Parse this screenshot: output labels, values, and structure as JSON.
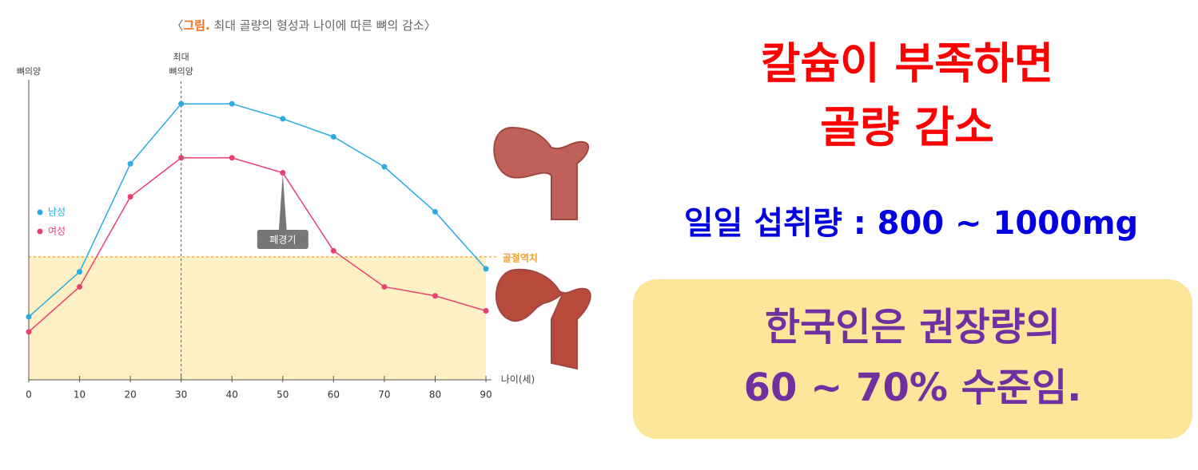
{
  "chart_data": {
    "type": "line",
    "title_parts": [
      "〈",
      "그림.",
      " 최대 골량의 형성과 나이에 따른 뼈의 감소〉"
    ],
    "y_label": "뼈의양",
    "x_label": "나이(세)",
    "x": [
      0,
      10,
      20,
      30,
      40,
      50,
      60,
      70,
      80,
      90
    ],
    "xlim": [
      0,
      92
    ],
    "xticks": [
      0,
      10,
      20,
      30,
      40,
      50,
      60,
      70,
      80,
      90
    ],
    "ylim": [
      0,
      100
    ],
    "series": [
      {
        "name": "남성",
        "color": "#29abe2",
        "values": [
          21,
          36,
          72,
          92,
          92,
          87,
          81,
          71,
          56,
          37
        ]
      },
      {
        "name": "여성",
        "color": "#e8416f",
        "values": [
          16,
          31,
          61,
          74,
          74,
          69,
          43,
          31,
          28,
          23
        ]
      }
    ],
    "legend": "left",
    "annotations": {
      "peak": {
        "x": 30,
        "lines": [
          "최대",
          "뼈의양"
        ]
      },
      "menopause": {
        "x": 50,
        "label": "폐경기"
      },
      "threshold": {
        "value": 41,
        "label": "골절역치",
        "color": "#f0a030"
      }
    }
  },
  "headline": {
    "lines": [
      "칼슘이 부족하면",
      "골량 감소"
    ]
  },
  "intake": "일일 섭취량 : 800 ~ 1000mg",
  "box": {
    "lines": [
      "한국인은 권장량의",
      "60 ~ 70% 수준임."
    ]
  }
}
